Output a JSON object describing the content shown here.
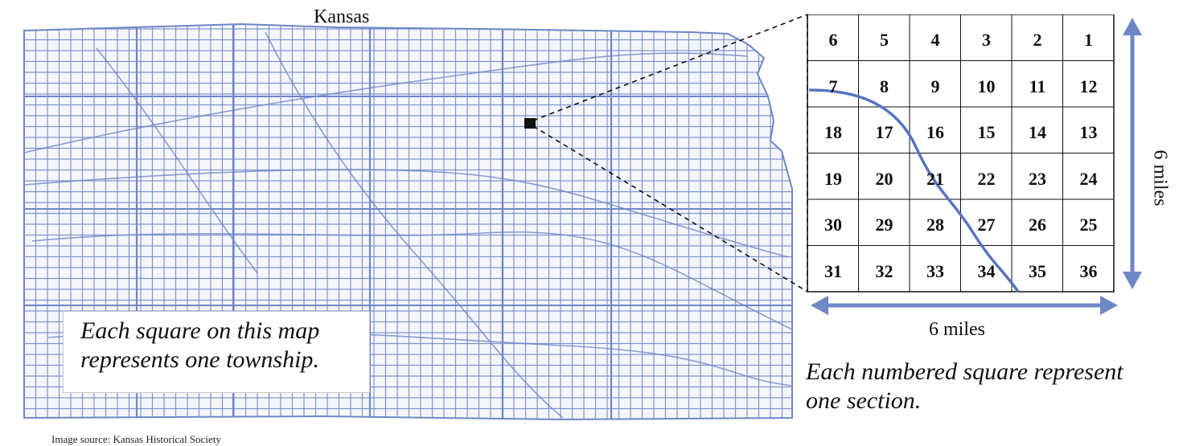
{
  "map": {
    "title": "Kansas",
    "caption": "Each square on this map represents one township.",
    "source": "Image source: Kansas Historical Society"
  },
  "section_grid": {
    "rows": [
      [
        "6",
        "5",
        "4",
        "3",
        "2",
        "1"
      ],
      [
        "7",
        "8",
        "9",
        "10",
        "11",
        "12"
      ],
      [
        "18",
        "17",
        "16",
        "15",
        "14",
        "13"
      ],
      [
        "19",
        "20",
        "21",
        "22",
        "23",
        "24"
      ],
      [
        "30",
        "29",
        "28",
        "27",
        "26",
        "25"
      ],
      [
        "31",
        "32",
        "33",
        "34",
        "35",
        "36"
      ]
    ],
    "width_label": "6 miles",
    "height_label": "6 miles",
    "caption": "Each numbered square represent one section."
  },
  "colors": {
    "grid_blue": "#6f86c7",
    "arrow_blue": "#6f86c7",
    "river_blue": "#5b74bf",
    "line_black": "#111111"
  }
}
